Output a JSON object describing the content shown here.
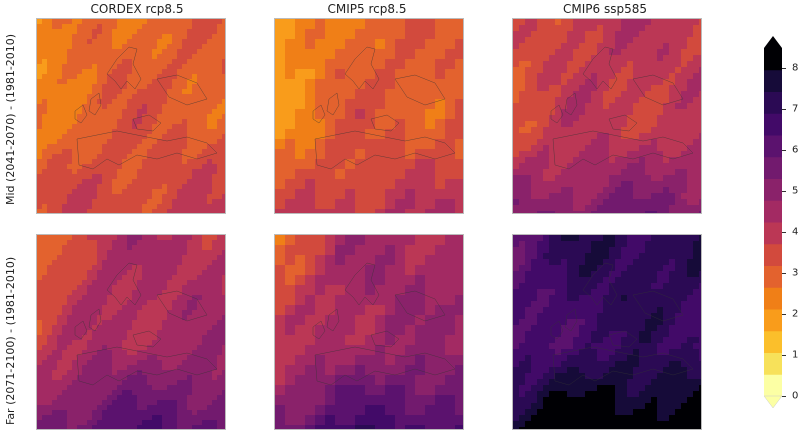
{
  "columns": [
    "CORDEX rcp8.5",
    "CMIP5 rcp8.5",
    "CMIP6 ssp585"
  ],
  "rows": [
    "Mid (2041-2070) - (1981-2010)",
    "Far (2071-2100) - (1981-2010)"
  ],
  "colorbar": {
    "ticks": [
      "0",
      "1",
      "2",
      "3",
      "4",
      "5",
      "6",
      "7",
      "8"
    ],
    "min": 0,
    "max": 8.5,
    "extend": "both",
    "colors": [
      "#fcffa4",
      "#f7e15a",
      "#fbbf2b",
      "#f99c1b",
      "#f07f17",
      "#e3622e",
      "#d24a3d",
      "#bb3755",
      "#a32a63",
      "#8a226a",
      "#721a6e",
      "#5b126e",
      "#420a68",
      "#2b0a54",
      "#160b39",
      "#000004"
    ]
  },
  "panels": [
    {
      "row": 0,
      "col": 0,
      "base": 3.2,
      "north": -0.6,
      "south": 0.3,
      "west": -0.9
    },
    {
      "row": 0,
      "col": 1,
      "base": 3.1,
      "north": -0.4,
      "south": 0.8,
      "west": -1.4
    },
    {
      "row": 0,
      "col": 2,
      "base": 3.6,
      "north": 0.2,
      "south": 1.6,
      "west": -0.8
    },
    {
      "row": 1,
      "col": 0,
      "base": 4.4,
      "north": -0.5,
      "south": 1.5,
      "west": -1.5
    },
    {
      "row": 1,
      "col": 1,
      "base": 4.6,
      "north": -0.4,
      "south": 1.7,
      "west": -1.7
    },
    {
      "row": 1,
      "col": 2,
      "base": 6.2,
      "north": 0.8,
      "south": 2.0,
      "west": -1.2
    }
  ]
}
